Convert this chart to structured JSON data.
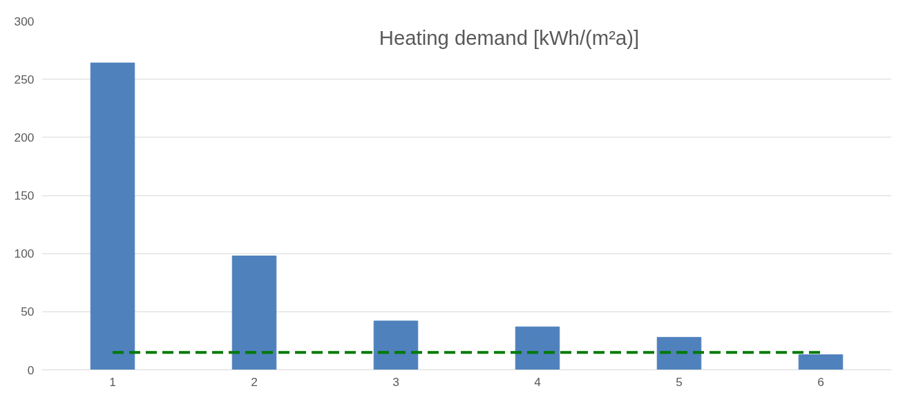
{
  "chart_data": {
    "type": "bar",
    "title": "Heating demand [kWh/(m²a)]",
    "categories": [
      "1",
      "2",
      "3",
      "4",
      "5",
      "6"
    ],
    "series": [
      {
        "color": "#4f81bd",
        "values": [
          264,
          98,
          42,
          37,
          28,
          13
        ]
      },
      {
        "type": "line",
        "color": "#007a00",
        "line_style": "dashed",
        "marker": "none",
        "values": [
          15,
          15,
          15,
          15,
          15,
          15
        ]
      }
    ],
    "ylim": [
      0,
      300
    ],
    "yticks": [
      0,
      50,
      100,
      150,
      200,
      250,
      300
    ],
    "grid": "y"
  }
}
